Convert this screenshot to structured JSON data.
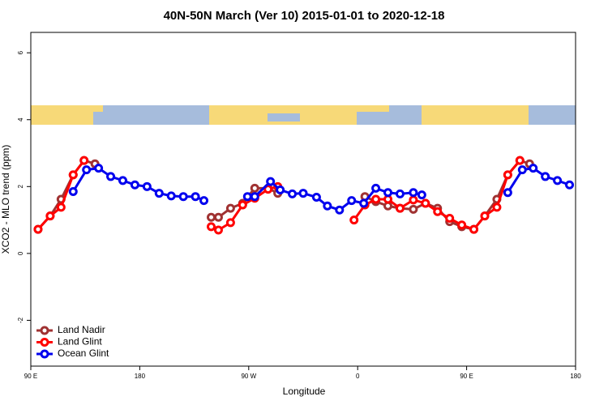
{
  "chart_data": {
    "type": "line",
    "title": "40N-50N March (Ver 10)   2015-01-01 to 2020-12-18",
    "x_label": "Longitude",
    "y_label": "XCO2 - MLO trend (ppm)",
    "xlim": [
      90,
      540
    ],
    "xticks": [
      {
        "value": 90,
        "label": "90 E"
      },
      180,
      {
        "value": 270,
        "label": "90 W"
      },
      {
        "value": 360,
        "label": "0"
      },
      {
        "value": 450,
        "label": "90 E"
      },
      {
        "value": 540,
        "label": "180"
      }
    ],
    "ylim": [
      -3.37,
      6.61
    ],
    "yticks": [
      -2,
      0,
      2,
      4,
      6
    ],
    "legend": "bottom-left",
    "series": [
      {
        "name": "Land Nadir",
        "color": "#a03232",
        "x": [
          96,
          106,
          115,
          125,
          134,
          143,
          null,
          239,
          245,
          255,
          265,
          275,
          286,
          294,
          null,
          366,
          375,
          385,
          395,
          406,
          416,
          426,
          436,
          446,
          456,
          465,
          475,
          484,
          494,
          502
        ],
        "values": [
          0.72,
          1.12,
          1.62,
          2.35,
          2.78,
          2.68,
          null,
          1.08,
          1.08,
          1.35,
          1.5,
          1.95,
          1.95,
          1.8,
          null,
          1.7,
          1.55,
          1.42,
          1.35,
          1.32,
          1.5,
          1.35,
          0.95,
          0.8,
          0.72,
          1.12,
          1.62,
          2.35,
          2.78,
          2.68
        ]
      },
      {
        "name": "Land Glint",
        "color": "#ff0000",
        "x": [
          96,
          106,
          115,
          125,
          134,
          null,
          239,
          245,
          255,
          265,
          275,
          286,
          294,
          null,
          357,
          366,
          375,
          385,
          395,
          406,
          416,
          426,
          436,
          446,
          456,
          465,
          475,
          484,
          494
        ],
        "values": [
          0.72,
          1.12,
          1.38,
          2.35,
          2.78,
          null,
          0.8,
          0.7,
          0.92,
          1.45,
          1.65,
          1.92,
          2.0,
          null,
          1.0,
          1.45,
          1.62,
          1.62,
          1.35,
          1.6,
          1.5,
          1.25,
          1.05,
          0.85,
          0.72,
          1.12,
          1.38,
          2.35,
          2.78
        ]
      },
      {
        "name": "Ocean Glint",
        "color": "#0000ee",
        "x": [
          125,
          136,
          146,
          156,
          166,
          176,
          186,
          196,
          206,
          216,
          226,
          233,
          null,
          269,
          275,
          288,
          296,
          306,
          315,
          326,
          335,
          345,
          355,
          365,
          375,
          385,
          395,
          406,
          413,
          null,
          484,
          496,
          505,
          515,
          525,
          535
        ],
        "values": [
          1.85,
          2.5,
          2.55,
          2.3,
          2.18,
          2.05,
          2.0,
          1.8,
          1.72,
          1.7,
          1.7,
          1.58,
          null,
          1.7,
          1.7,
          2.15,
          1.9,
          1.78,
          1.8,
          1.68,
          1.42,
          1.3,
          1.58,
          1.5,
          1.95,
          1.82,
          1.78,
          1.82,
          1.75,
          null,
          1.82,
          2.5,
          2.55,
          2.3,
          2.18,
          2.05
        ]
      }
    ]
  }
}
